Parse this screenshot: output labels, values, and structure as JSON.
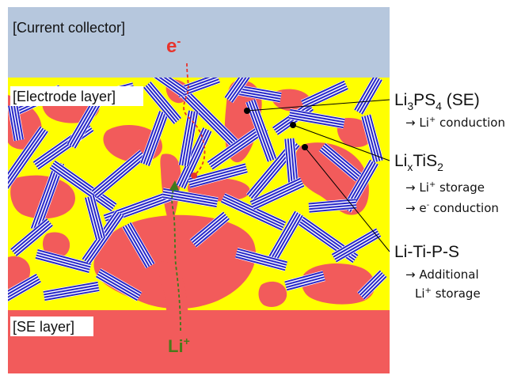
{
  "layers": {
    "collector": "[Current collector]",
    "electrode": "[Electrode layer]",
    "se": "[SE layer]"
  },
  "carriers": {
    "electron": "e",
    "electron_charge": "-",
    "lithium": "Li",
    "lithium_charge": "+"
  },
  "labels": {
    "li3ps4": {
      "a": "Li",
      "b": "3",
      "c": "PS",
      "d": "4",
      "e": " (SE)"
    },
    "li3ps4_role": {
      "arrow": "→ Li",
      "sup": "+",
      "rest": " conduction"
    },
    "lixtis2": {
      "a": "Li",
      "b": "x",
      "c": "TiS",
      "d": "2"
    },
    "lixtis2_role1": {
      "arrow": "→ Li",
      "sup": "+",
      "rest": " storage"
    },
    "lixtis2_role2": {
      "arrow": "→ e",
      "sup": "-",
      "rest": " conduction"
    },
    "litips": "Li-Ti-P-S",
    "litips_role1": "→ Additional",
    "litips_role2": {
      "a": "Li",
      "sup": "+",
      "rest": " storage"
    }
  },
  "colors": {
    "collector": "#b6c7dd",
    "electrolyte": "#f25b5b",
    "electrode_fill": "#ffff00",
    "tis2_blue": "#2828c8",
    "electron_path": "#e8342c",
    "li_path": "#3d7a1c"
  }
}
